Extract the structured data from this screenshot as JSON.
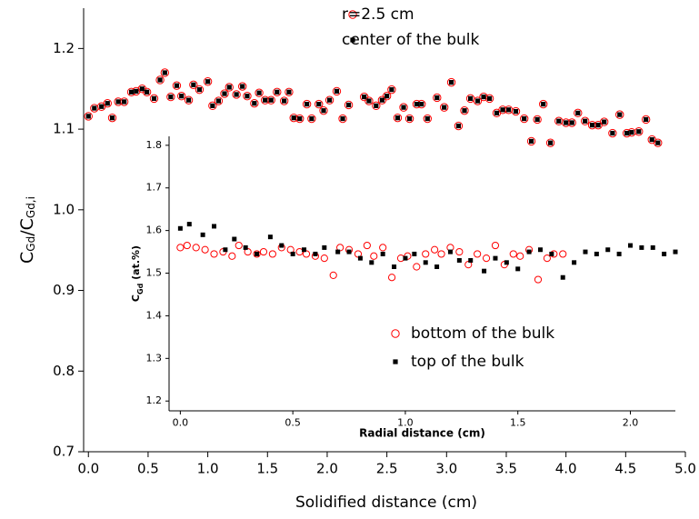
{
  "chart_data": [
    {
      "type": "scatter",
      "xlabel": "Solidified distance (cm)",
      "ylabel": [
        "C",
        "Gd",
        "/C",
        "Gd,i"
      ],
      "xlim": [
        -0.04,
        5.0
      ],
      "ylim": [
        0.7,
        1.25
      ],
      "xticks": [
        {
          "value": 0,
          "label": "0.0"
        },
        0.5,
        {
          "value": 1,
          "label": "1.0"
        },
        1.5,
        {
          "value": 2,
          "label": "2.0"
        },
        2.5,
        {
          "value": 3,
          "label": "3.0"
        },
        3.5,
        {
          "value": 4,
          "label": "4.0"
        },
        4.5,
        {
          "value": 5,
          "label": "5.0"
        }
      ],
      "yticks": [
        0.7,
        0.8,
        0.9,
        {
          "value": 1,
          "label": "1.0"
        },
        1.1,
        1.2
      ],
      "legend": "upper center",
      "series": [
        {
          "name": "r=2.5 cm",
          "color": "#ff0000",
          "marker": "circle",
          "x": [
            0.0,
            0.05,
            0.11,
            0.16,
            0.2,
            0.25,
            0.3,
            0.36,
            0.4,
            0.45,
            0.49,
            0.55,
            0.6,
            0.64,
            0.69,
            0.74,
            0.78,
            0.84,
            0.88,
            0.93,
            1.0,
            1.04,
            1.09,
            1.14,
            1.18,
            1.24,
            1.29,
            1.33,
            1.39,
            1.43,
            1.48,
            1.53,
            1.58,
            1.64,
            1.68,
            1.72,
            1.77,
            1.83,
            1.87,
            1.93,
            1.97,
            2.02,
            2.08,
            2.13,
            2.18,
            2.31,
            2.35,
            2.41,
            2.46,
            2.5,
            2.54,
            2.59,
            2.64,
            2.69,
            2.75,
            2.79,
            2.84,
            2.92,
            2.98,
            3.04,
            3.1,
            3.15,
            3.2,
            3.26,
            3.31,
            3.36,
            3.42,
            3.47,
            3.52,
            3.58,
            3.65,
            3.71,
            3.76,
            3.81,
            3.87,
            3.94,
            4.0,
            4.05,
            4.1,
            4.16,
            4.22,
            4.27,
            4.32,
            4.39,
            4.45,
            4.51,
            4.55,
            4.61,
            4.67,
            4.72,
            4.77
          ],
          "values": [
            1.116,
            1.126,
            1.128,
            1.132,
            1.114,
            1.134,
            1.134,
            1.146,
            1.147,
            1.15,
            1.146,
            1.138,
            1.161,
            1.17,
            1.14,
            1.154,
            1.141,
            1.136,
            1.155,
            1.149,
            1.159,
            1.129,
            1.135,
            1.144,
            1.152,
            1.143,
            1.153,
            1.141,
            1.132,
            1.145,
            1.136,
            1.136,
            1.146,
            1.135,
            1.146,
            1.114,
            1.113,
            1.131,
            1.113,
            1.131,
            1.123,
            1.136,
            1.147,
            1.113,
            1.13,
            1.14,
            1.135,
            1.129,
            1.136,
            1.141,
            1.149,
            1.114,
            1.127,
            1.113,
            1.131,
            1.131,
            1.113,
            1.139,
            1.127,
            1.158,
            1.104,
            1.123,
            1.138,
            1.135,
            1.14,
            1.138,
            1.12,
            1.124,
            1.124,
            1.122,
            1.113,
            1.085,
            1.112,
            1.131,
            1.083,
            1.11,
            1.108,
            1.108,
            1.12,
            1.11,
            1.105,
            1.105,
            1.109,
            1.095,
            1.118,
            1.095,
            1.096,
            1.097,
            1.112,
            1.087,
            1.083
          ]
        },
        {
          "name": "center of the bulk",
          "color": "#000000",
          "marker": "square",
          "x": [
            0.0,
            0.05,
            0.11,
            0.16,
            0.2,
            0.25,
            0.3,
            0.36,
            0.4,
            0.45,
            0.49,
            0.55,
            0.6,
            0.64,
            0.69,
            0.74,
            0.78,
            0.84,
            0.88,
            0.93,
            1.0,
            1.04,
            1.09,
            1.14,
            1.18,
            1.24,
            1.29,
            1.33,
            1.39,
            1.43,
            1.48,
            1.53,
            1.58,
            1.64,
            1.68,
            1.72,
            1.77,
            1.83,
            1.87,
            1.93,
            1.97,
            2.02,
            2.08,
            2.13,
            2.18,
            2.31,
            2.35,
            2.41,
            2.46,
            2.5,
            2.54,
            2.59,
            2.64,
            2.69,
            2.75,
            2.79,
            2.84,
            2.92,
            2.98,
            3.04,
            3.1,
            3.15,
            3.2,
            3.26,
            3.31,
            3.36,
            3.42,
            3.47,
            3.52,
            3.58,
            3.65,
            3.71,
            3.76,
            3.81,
            3.87,
            3.94,
            4.0,
            4.05,
            4.1,
            4.16,
            4.22,
            4.27,
            4.32,
            4.39,
            4.45,
            4.51,
            4.55,
            4.61,
            4.67,
            4.72,
            4.77
          ],
          "values": [
            1.116,
            1.126,
            1.128,
            1.132,
            1.114,
            1.134,
            1.134,
            1.146,
            1.147,
            1.15,
            1.146,
            1.138,
            1.161,
            1.17,
            1.14,
            1.154,
            1.141,
            1.136,
            1.155,
            1.149,
            1.159,
            1.129,
            1.135,
            1.144,
            1.152,
            1.143,
            1.153,
            1.141,
            1.132,
            1.145,
            1.136,
            1.136,
            1.146,
            1.135,
            1.146,
            1.114,
            1.113,
            1.131,
            1.113,
            1.131,
            1.123,
            1.136,
            1.147,
            1.113,
            1.13,
            1.14,
            1.135,
            1.129,
            1.136,
            1.141,
            1.149,
            1.114,
            1.127,
            1.113,
            1.131,
            1.131,
            1.113,
            1.139,
            1.127,
            1.158,
            1.104,
            1.123,
            1.138,
            1.135,
            1.14,
            1.138,
            1.12,
            1.124,
            1.124,
            1.122,
            1.113,
            1.085,
            1.112,
            1.131,
            1.083,
            1.11,
            1.108,
            1.108,
            1.12,
            1.11,
            1.105,
            1.105,
            1.109,
            1.095,
            1.118,
            1.095,
            1.096,
            1.097,
            1.112,
            1.087,
            1.083
          ]
        }
      ]
    },
    {
      "type": "scatter",
      "xlabel": "Radial distance (cm)",
      "ylabel": [
        "C",
        "Gd",
        " (at.%)"
      ],
      "xlim": [
        -0.05,
        2.2
      ],
      "ylim": [
        1.177,
        1.821
      ],
      "xticks": [
        {
          "value": 0,
          "label": "0.0"
        },
        0.5,
        {
          "value": 1,
          "label": "1.0"
        },
        1.5,
        {
          "value": 2,
          "label": "2.0"
        }
      ],
      "yticks": [
        1.2,
        1.3,
        1.4,
        1.5,
        1.6,
        1.7,
        1.8
      ],
      "legend": "lower right",
      "series": [
        {
          "name": "bottom of the bulk",
          "color": "#ff0000",
          "marker": "circle",
          "x": [
            0.0,
            0.03,
            0.07,
            0.11,
            0.15,
            0.19,
            0.23,
            0.26,
            0.3,
            0.34,
            0.37,
            0.41,
            0.45,
            0.49,
            0.53,
            0.56,
            0.6,
            0.64,
            0.68,
            0.71,
            0.75,
            0.79,
            0.83,
            0.86,
            0.9,
            0.94,
            0.98,
            1.01,
            1.05,
            1.09,
            1.13,
            1.16,
            1.2,
            1.24,
            1.28,
            1.32,
            1.36,
            1.4,
            1.44,
            1.48,
            1.51,
            1.55,
            1.59,
            1.63,
            1.66,
            1.7
          ],
          "values": [
            1.56,
            1.565,
            1.56,
            1.555,
            1.545,
            1.55,
            1.54,
            1.565,
            1.55,
            1.545,
            1.55,
            1.545,
            1.56,
            1.555,
            1.55,
            1.545,
            1.54,
            1.535,
            1.495,
            1.56,
            1.555,
            1.545,
            1.565,
            1.54,
            1.56,
            1.49,
            1.535,
            1.54,
            1.515,
            1.545,
            1.555,
            1.545,
            1.56,
            1.55,
            1.52,
            1.545,
            1.535,
            1.565,
            1.52,
            1.545,
            1.54,
            1.555,
            1.485,
            1.535,
            1.545,
            1.545
          ]
        },
        {
          "name": "top of the bulk",
          "color": "#000000",
          "marker": "square",
          "x": [
            0.0,
            0.04,
            0.1,
            0.15,
            0.2,
            0.24,
            0.29,
            0.34,
            0.4,
            0.45,
            0.5,
            0.55,
            0.6,
            0.64,
            0.7,
            0.75,
            0.8,
            0.85,
            0.9,
            0.95,
            1.0,
            1.04,
            1.09,
            1.14,
            1.2,
            1.24,
            1.29,
            1.35,
            1.4,
            1.45,
            1.5,
            1.55,
            1.6,
            1.65,
            1.7,
            1.75,
            1.8,
            1.85,
            1.9,
            1.95,
            2.0,
            2.05,
            2.1,
            2.15,
            2.2
          ],
          "values": [
            1.605,
            1.615,
            1.59,
            1.61,
            1.555,
            1.58,
            1.56,
            1.545,
            1.585,
            1.565,
            1.545,
            1.555,
            1.545,
            1.56,
            1.55,
            1.55,
            1.535,
            1.525,
            1.545,
            1.515,
            1.535,
            1.545,
            1.525,
            1.515,
            1.55,
            1.53,
            1.53,
            1.505,
            1.535,
            1.525,
            1.51,
            1.55,
            1.555,
            1.545,
            1.49,
            1.525,
            1.55,
            1.545,
            1.555,
            1.545,
            1.565,
            1.56,
            1.56,
            1.545,
            1.55
          ]
        }
      ]
    }
  ]
}
